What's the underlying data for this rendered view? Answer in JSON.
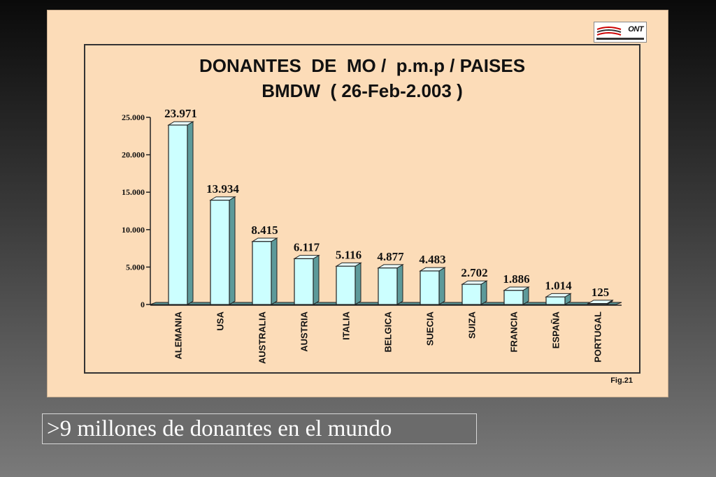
{
  "caption": ">9 millones de donantes en el mundo",
  "logo_text": "ONT",
  "fig_label": "Fig.21",
  "colors": {
    "bar_front": "#ccffff",
    "bar_side": "#5d9a9a",
    "bar_top": "#e8ffff",
    "panel": "#fcdcb8"
  },
  "chart_data": {
    "type": "bar",
    "title": [
      "DONANTES  DE  MO /  p.m.p / PAISES",
      "BMDW  ( 26-Feb-2.003 )"
    ],
    "categories": [
      "ALEMANIA",
      "USA",
      "AUSTRALIA",
      "AUSTRIA",
      "ITALIA",
      "BELGICA",
      "SUECIA",
      "SUIZA",
      "FRANCIA",
      "ESPAÑA",
      "PORTUGAL"
    ],
    "values": [
      23971,
      13934,
      8415,
      6117,
      5116,
      4877,
      4483,
      2702,
      1886,
      1014,
      125
    ],
    "data_labels": [
      "23.971",
      "13.934",
      "8.415",
      "6.117",
      "5.116",
      "4.877",
      "4.483",
      "2.702",
      "1.886",
      "1.014",
      "125"
    ],
    "yticks": [
      0,
      5000,
      10000,
      15000,
      20000,
      25000
    ],
    "ytick_labels": [
      "0",
      "5.000",
      "10.000",
      "15.000",
      "20.000",
      "25.000"
    ],
    "ylim": [
      0,
      25000
    ],
    "grid": false,
    "legend": "none"
  }
}
